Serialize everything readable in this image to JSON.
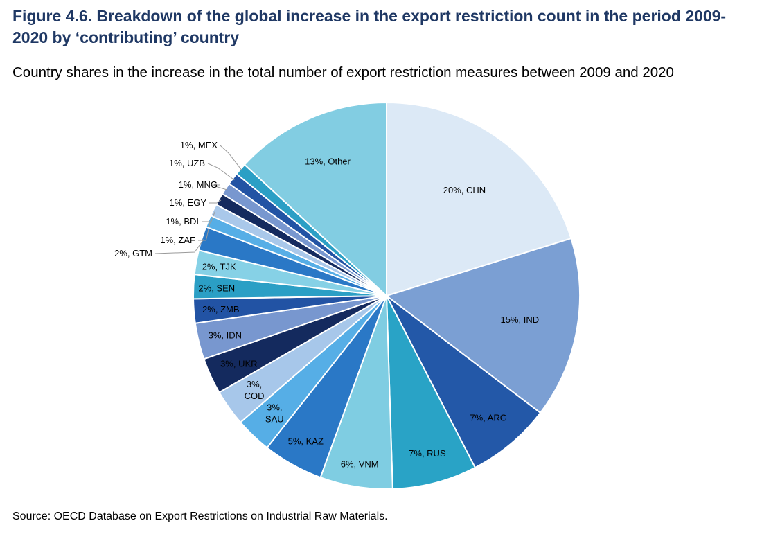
{
  "title": "Figure 4.6. Breakdown of the global increase in the export restriction count in the period 2009-2020 by ‘contributing’ country",
  "subtitle": "Country shares in the increase in the total number of export restriction measures between 2009 and 2020",
  "source": "Source: OECD Database on Export Restrictions on Industrial Raw Materials.",
  "chart_data": {
    "type": "pie",
    "title": "Country shares in the increase in the total number of export restriction measures between 2009 and 2020",
    "start_angle_deg": 0,
    "direction": "clockwise",
    "slices": [
      {
        "name": "CHN",
        "value": 20,
        "label": "20%, CHN",
        "color": "#dce9f6"
      },
      {
        "name": "IND",
        "value": 15,
        "label": "15%, IND",
        "color": "#7b9fd3"
      },
      {
        "name": "ARG",
        "value": 7,
        "label": "7%, ARG",
        "color": "#2358a8"
      },
      {
        "name": "RUS",
        "value": 7,
        "label": "7%, RUS",
        "color": "#29a3c6"
      },
      {
        "name": "VNM",
        "value": 6,
        "label": "6%, VNM",
        "color": "#7fcde2"
      },
      {
        "name": "KAZ",
        "value": 5,
        "label": "5%, KAZ",
        "color": "#2a78c6"
      },
      {
        "name": "SAU",
        "value": 3,
        "label": "3%, SAU",
        "color": "#56aee6"
      },
      {
        "name": "COD",
        "value": 3,
        "label": "3%, COD",
        "color": "#a7c7ea"
      },
      {
        "name": "UKR",
        "value": 3,
        "label": "3%, UKR",
        "color": "#142a5e"
      },
      {
        "name": "IDN",
        "value": 3,
        "label": "3%, IDN",
        "color": "#7897cf"
      },
      {
        "name": "ZMB",
        "value": 2,
        "label": "2%, ZMB",
        "color": "#2253a4"
      },
      {
        "name": "SEN",
        "value": 2,
        "label": "2%, SEN",
        "color": "#2b9fc5"
      },
      {
        "name": "TJK",
        "value": 2,
        "label": "2%, TJK",
        "color": "#86d1e6"
      },
      {
        "name": "GTM",
        "value": 2,
        "label": "2%, GTM",
        "color": "#2a78c6"
      },
      {
        "name": "ZAF",
        "value": 1,
        "label": "1%, ZAF",
        "color": "#56aee6"
      },
      {
        "name": "BDI",
        "value": 1,
        "label": "1%, BDI",
        "color": "#a9c8ea"
      },
      {
        "name": "EGY",
        "value": 1,
        "label": "1%, EGY",
        "color": "#142a5e"
      },
      {
        "name": "MNG",
        "value": 1,
        "label": "1%, MNG",
        "color": "#7897cf"
      },
      {
        "name": "UZB",
        "value": 1,
        "label": "1%, UZB",
        "color": "#2253a4"
      },
      {
        "name": "MEX",
        "value": 1,
        "label": "1%, MEX",
        "color": "#2b9fc5"
      },
      {
        "name": "Other",
        "value": 13,
        "label": "13%, Other",
        "color": "#82cde2"
      }
    ]
  }
}
